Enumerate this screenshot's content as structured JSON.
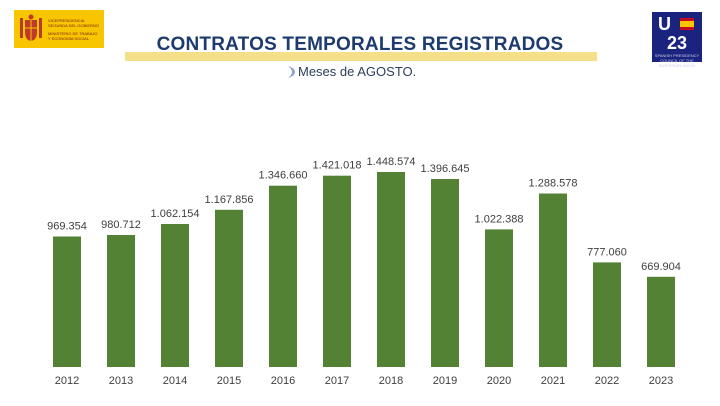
{
  "header": {
    "gov_logo": {
      "line1": "VICEPRESIDENCIA SEGUNDA DEL GOBIERNO",
      "line2": "MINISTERIO DE TRABAJO Y ECONOMÍA SOCIAL",
      "colors": {
        "background": "#f7c600",
        "text": "#7a1a12"
      }
    },
    "eu_logo": {
      "letter": "U",
      "year": "23",
      "caption": "SPANISH PRESIDENCY COUNCIL OF THE EUROPEAN UNION",
      "colors": {
        "background": "#1a237e",
        "text": "#ffffff"
      }
    }
  },
  "chart_data": {
    "type": "bar",
    "title": "CONTRATOS TEMPORALES REGISTRADOS",
    "subtitle": "Meses de AGOSTO.",
    "xlabel": "",
    "ylabel": "",
    "categories": [
      "2012",
      "2013",
      "2014",
      "2015",
      "2016",
      "2017",
      "2018",
      "2019",
      "2020",
      "2021",
      "2022",
      "2023"
    ],
    "values": [
      969354,
      980712,
      1062154,
      1167856,
      1346660,
      1421018,
      1448574,
      1396645,
      1022388,
      1288578,
      777060,
      669904
    ],
    "data_labels": [
      "969.354",
      "980.712",
      "1.062.154",
      "1.167.856",
      "1.346.660",
      "1.421.018",
      "1.448.574",
      "1.396.645",
      "1.022.388",
      "1.288.578",
      "777.060",
      "669.904"
    ],
    "ylim": [
      0,
      1448574
    ],
    "grid": false,
    "legend": "none",
    "colors": {
      "bar": "#548235",
      "title": "#1d3b6e",
      "title_band": "#f5df88",
      "labels": "#404040"
    }
  }
}
